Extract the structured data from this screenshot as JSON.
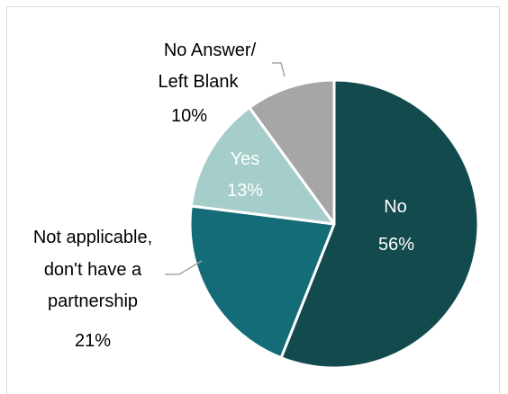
{
  "chart_data": {
    "type": "pie",
    "title": "",
    "slices": [
      {
        "label": "No",
        "value": 56,
        "value_label": "56%",
        "color": "#134a4d"
      },
      {
        "label_lines": [
          "Not applicable,",
          "don't have a",
          "partnership"
        ],
        "value": 21,
        "value_label": "21%",
        "color": "#136c78"
      },
      {
        "label": "Yes",
        "value": 13,
        "value_label": "13%",
        "color": "#a5cecb"
      },
      {
        "label_lines": [
          "No Answer/",
          "Left Blank"
        ],
        "value": 10,
        "value_label": "10%",
        "color": "#a6a6a6"
      }
    ],
    "start_angle": "12 o'clock",
    "direction": "clockwise",
    "legend": "none"
  }
}
